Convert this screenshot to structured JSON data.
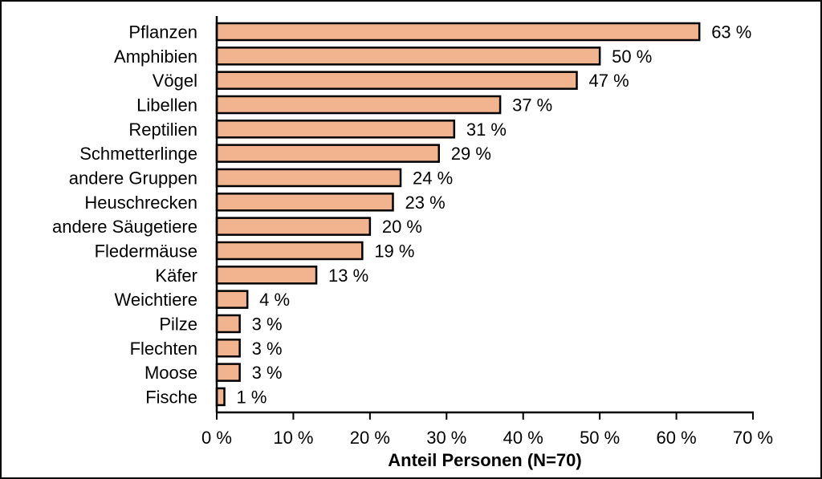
{
  "chart_data": {
    "type": "bar",
    "orientation": "horizontal",
    "categories": [
      "Pflanzen",
      "Amphibien",
      "Vögel",
      "Libellen",
      "Reptilien",
      "Schmetterlinge",
      "andere Gruppen",
      "Heuschrecken",
      "andere Säugetiere",
      "Fledermäuse",
      "Käfer",
      "Weichtiere",
      "Pilze",
      "Flechten",
      "Moose",
      "Fische"
    ],
    "values": [
      63,
      50,
      47,
      37,
      31,
      29,
      24,
      23,
      20,
      19,
      13,
      4,
      3,
      3,
      3,
      1
    ],
    "value_labels": [
      "63 %",
      "50 %",
      "47 %",
      "37 %",
      "31 %",
      "29 %",
      "24 %",
      "23 %",
      "20 %",
      "19 %",
      "13 %",
      "4 %",
      "3 %",
      "3 %",
      "3 %",
      "1 %"
    ],
    "xlabel": "Anteil Personen (N=70)",
    "ylabel": "",
    "xlim": [
      0,
      70
    ],
    "x_ticks": [
      0,
      10,
      20,
      30,
      40,
      50,
      60,
      70
    ],
    "x_tick_labels": [
      "0 %",
      "10 %",
      "20 %",
      "30 %",
      "40 %",
      "50 %",
      "60 %",
      "70 %"
    ],
    "grid": false,
    "legend": "none",
    "colors": {
      "bar_fill": "#f2b48f",
      "bar_stroke": "#000000",
      "axis": "#000000"
    }
  }
}
